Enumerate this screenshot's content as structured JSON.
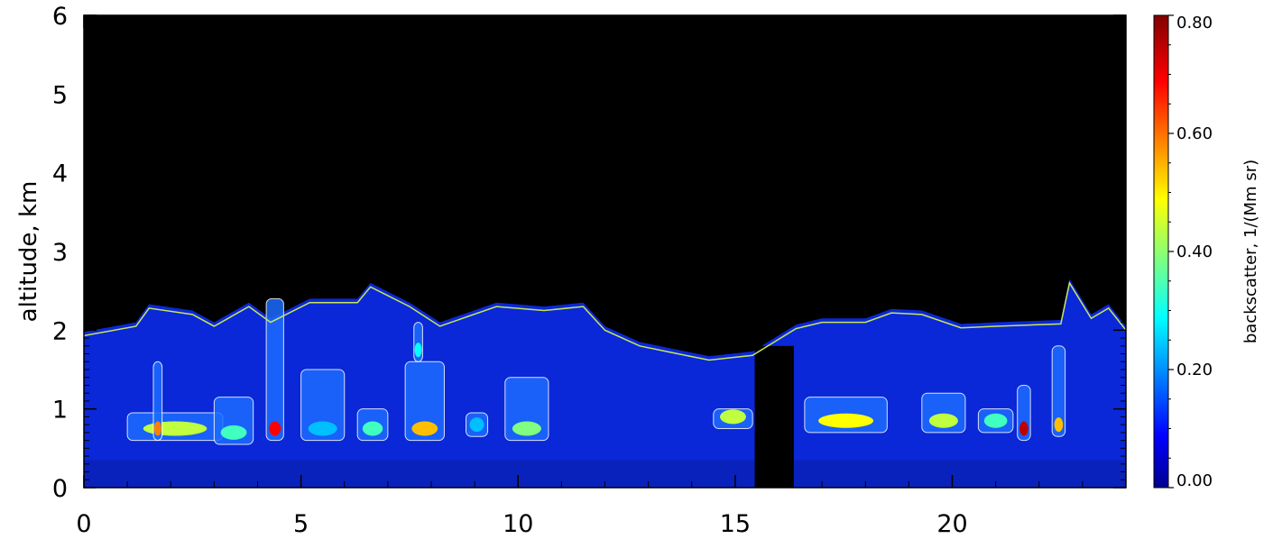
{
  "chart_data": {
    "type": "heatmap",
    "title": "",
    "xlabel": "",
    "ylabel": "altitude, km",
    "xlim": [
      0,
      24
    ],
    "ylim": [
      0,
      6
    ],
    "xticks": [
      0,
      5,
      10,
      15,
      20
    ],
    "yticks": [
      0,
      1,
      2,
      3,
      4,
      5,
      6
    ],
    "colorbar": {
      "label": "backscatter, 1/(Mm sr)",
      "range": [
        0,
        0.8
      ],
      "ticks": [
        "0.00",
        "0.20",
        "0.40",
        "0.60",
        "0.80"
      ],
      "colormap": "jet"
    },
    "no_data_gap_hours": [
      15.45,
      16.35
    ],
    "boundary_layer_line": {
      "color": "#c8e65a",
      "x": [
        0,
        1.2,
        1.5,
        2.5,
        3.0,
        3.8,
        4.3,
        5.2,
        6.3,
        6.6,
        7.5,
        8.2,
        9.5,
        10.6,
        11.5,
        12.0,
        12.8,
        13.5,
        14.4,
        15.4,
        16.4,
        17.0,
        18.0,
        18.6,
        19.3,
        20.2,
        21.0,
        22.5,
        22.7,
        23.2,
        23.6,
        24.0
      ],
      "y": [
        1.93,
        2.05,
        2.28,
        2.2,
        2.05,
        2.3,
        2.1,
        2.35,
        2.35,
        2.55,
        2.3,
        2.05,
        2.3,
        2.25,
        2.3,
        2.0,
        1.8,
        1.72,
        1.62,
        1.68,
        2.02,
        2.1,
        2.1,
        2.22,
        2.2,
        2.03,
        2.05,
        2.08,
        2.6,
        2.15,
        2.28,
        2.0
      ]
    },
    "cloud_layers": [
      {
        "x0": 1.0,
        "x1": 3.2,
        "y0": 0.6,
        "y1": 0.95,
        "peak": 0.45
      },
      {
        "x0": 1.6,
        "x1": 1.8,
        "y0": 0.6,
        "y1": 1.6,
        "peak": 0.6
      },
      {
        "x0": 3.0,
        "x1": 3.9,
        "y0": 0.55,
        "y1": 1.15,
        "peak": 0.35
      },
      {
        "x0": 4.2,
        "x1": 4.6,
        "y0": 0.6,
        "y1": 2.4,
        "peak": 0.7
      },
      {
        "x0": 5.0,
        "x1": 6.0,
        "y0": 0.6,
        "y1": 1.5,
        "peak": 0.25
      },
      {
        "x0": 6.3,
        "x1": 7.0,
        "y0": 0.6,
        "y1": 1.0,
        "peak": 0.35
      },
      {
        "x0": 7.4,
        "x1": 8.3,
        "y0": 0.6,
        "y1": 1.6,
        "peak": 0.55
      },
      {
        "x0": 7.6,
        "x1": 7.8,
        "y0": 1.6,
        "y1": 2.1,
        "peak": 0.3
      },
      {
        "x0": 8.8,
        "x1": 9.3,
        "y0": 0.65,
        "y1": 0.95,
        "peak": 0.25
      },
      {
        "x0": 9.7,
        "x1": 10.7,
        "y0": 0.6,
        "y1": 1.4,
        "peak": 0.4
      },
      {
        "x0": 14.5,
        "x1": 15.4,
        "y0": 0.75,
        "y1": 1.0,
        "peak": 0.45
      },
      {
        "x0": 16.6,
        "x1": 18.5,
        "y0": 0.7,
        "y1": 1.15,
        "peak": 0.5
      },
      {
        "x0": 19.3,
        "x1": 20.3,
        "y0": 0.7,
        "y1": 1.2,
        "peak": 0.45
      },
      {
        "x0": 20.6,
        "x1": 21.4,
        "y0": 0.7,
        "y1": 1.0,
        "peak": 0.35
      },
      {
        "x0": 21.5,
        "x1": 21.8,
        "y0": 0.6,
        "y1": 1.3,
        "peak": 0.75
      },
      {
        "x0": 22.3,
        "x1": 22.6,
        "y0": 0.65,
        "y1": 1.8,
        "peak": 0.55
      }
    ]
  }
}
